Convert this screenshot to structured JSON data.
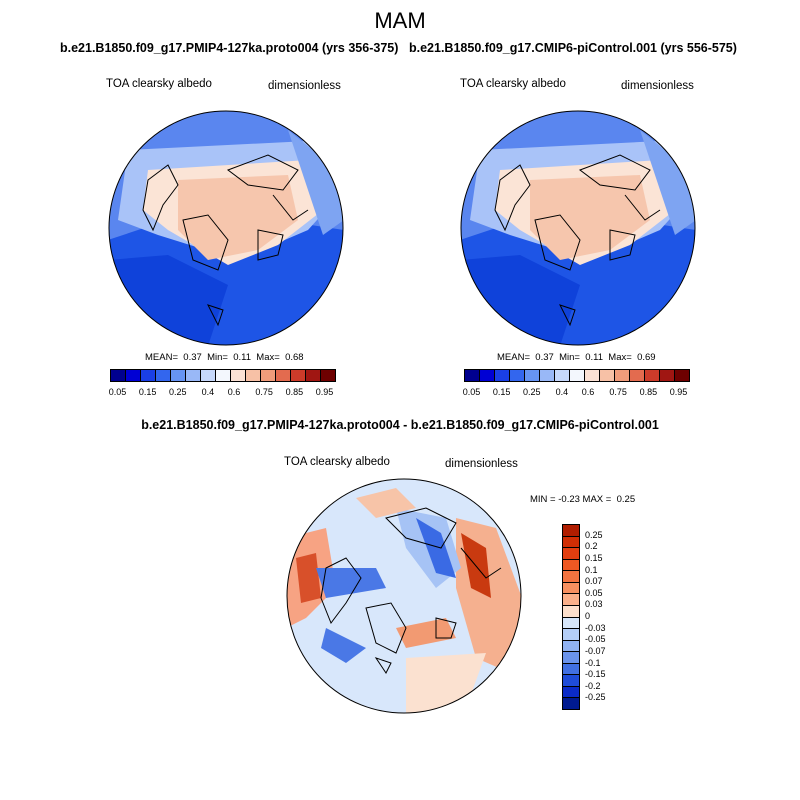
{
  "season": "MAM",
  "panels": [
    {
      "case": "b.e21.B1850.f09_g17.PMIP4-127ka.proto004 (yrs 356-375)",
      "variable": "TOA clearsky albedo",
      "units": "dimensionless",
      "mean_label": "MEAN=",
      "mean": "0.37",
      "min_label": "Min=",
      "min": "0.11",
      "max_label": "Max=",
      "max": "0.68"
    },
    {
      "case": "b.e21.B1850.f09_g17.CMIP6-piControl.001 (yrs 556-575)",
      "variable": "TOA clearsky albedo",
      "units": "dimensionless",
      "mean_label": "MEAN=",
      "mean": "0.37",
      "min_label": "Min=",
      "min": "0.11",
      "max_label": "Max=",
      "max": "0.69"
    }
  ],
  "difference": {
    "title": "b.e21.B1850.f09_g17.PMIP4-127ka.proto004 - b.e21.B1850.f09_g17.CMIP6-piControl.001",
    "variable": "TOA clearsky albedo",
    "units": "dimensionless",
    "min_label": "MIN =",
    "min": "-0.23",
    "max_label": "MAX =",
    "max": "0.25"
  },
  "colorbar_abs": {
    "labels": [
      "0.05",
      "0.15",
      "0.25",
      "0.4",
      "0.6",
      "0.75",
      "0.85",
      "0.95"
    ],
    "colors": [
      "#00008f",
      "#0000d4",
      "#1a3fe6",
      "#3366ee",
      "#6694f3",
      "#99b8f7",
      "#c6d8fb",
      "#f3f7fd",
      "#fbe1d4",
      "#f7c1a6",
      "#f09c7b",
      "#e36b4f",
      "#cc3b2a",
      "#a01612",
      "#6e0000"
    ]
  },
  "colorbar_diff": {
    "labels": [
      "0.25",
      "0.2",
      "0.15",
      "0.1",
      "0.07",
      "0.05",
      "0.03",
      "0",
      "-0.03",
      "-0.05",
      "-0.07",
      "-0.1",
      "-0.15",
      "-0.2",
      "-0.25"
    ],
    "colors": [
      "#b01d00",
      "#d02e05",
      "#e23e10",
      "#ee5823",
      "#f37340",
      "#f79060",
      "#fbb08a",
      "#fde0cc",
      "#d6e6fa",
      "#b4cef7",
      "#90b2f2",
      "#6a93ec",
      "#4170e2",
      "#1f4cd8",
      "#0b2bc8",
      "#001a90"
    ]
  }
}
